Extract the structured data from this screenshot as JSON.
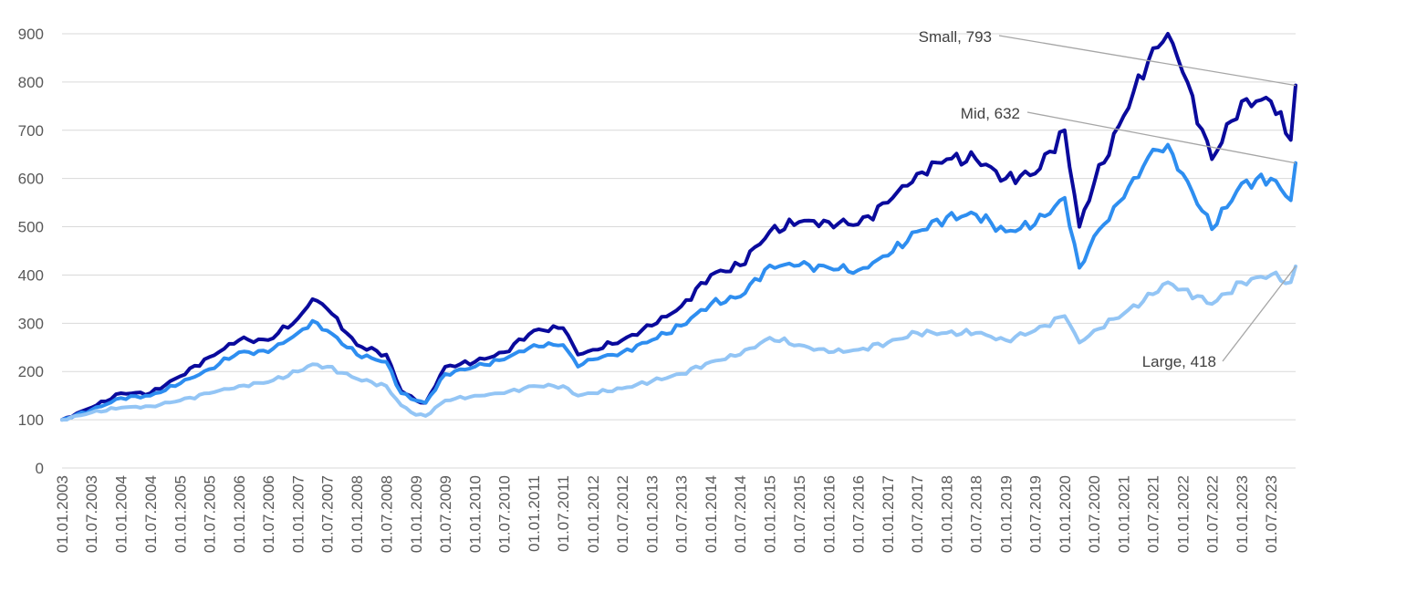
{
  "chart_data": {
    "type": "line",
    "title": "",
    "xlabel": "",
    "ylabel": "",
    "ylim": [
      0,
      900
    ],
    "yticks": [
      0,
      100,
      200,
      300,
      400,
      500,
      600,
      700,
      800,
      900
    ],
    "grid": true,
    "legend": "none",
    "x_labels": [
      "01.01.2003",
      "01.07.2003",
      "01.01.2004",
      "01.07.2004",
      "01.01.2005",
      "01.07.2005",
      "01.01.2006",
      "01.07.2006",
      "01.01.2007",
      "01.07.2007",
      "01.01.2008",
      "01.07.2008",
      "01.01.2009",
      "01.07.2009",
      "01.01.2010",
      "01.07.2010",
      "01.01.2011",
      "01.07.2011",
      "01.01.2012",
      "01.07.2012",
      "01.01.2013",
      "01.07.2013",
      "01.01.2014",
      "01.07.2014",
      "01.01.2015",
      "01.07.2015",
      "01.01.2016",
      "01.07.2016",
      "01.01.2017",
      "01.07.2017",
      "01.01.2018",
      "01.07.2018",
      "01.01.2019",
      "01.07.2019",
      "01.01.2020",
      "01.07.2020",
      "01.01.2021",
      "01.07.2021",
      "01.01.2022",
      "01.07.2022",
      "01.01.2023",
      "01.07.2023"
    ],
    "x_end": "01.12.2023",
    "series": [
      {
        "name": "Small",
        "color": "#0a0a9c",
        "label": "Small, 793",
        "points": [
          [
            "01.01.2003",
            100
          ],
          [
            "01.07.2003",
            125
          ],
          [
            "01.01.2004",
            155
          ],
          [
            "01.07.2004",
            155
          ],
          [
            "01.01.2005",
            190
          ],
          [
            "01.07.2005",
            230
          ],
          [
            "01.01.2006",
            265
          ],
          [
            "01.07.2006",
            265
          ],
          [
            "01.01.2007",
            310
          ],
          [
            "01.04.2007",
            350
          ],
          [
            "01.07.2007",
            330
          ],
          [
            "01.01.2008",
            255
          ],
          [
            "01.07.2008",
            235
          ],
          [
            "01.10.2008",
            160
          ],
          [
            "01.01.2009",
            140
          ],
          [
            "01.03.2009",
            135
          ],
          [
            "01.07.2009",
            210
          ],
          [
            "01.01.2010",
            220
          ],
          [
            "01.07.2010",
            240
          ],
          [
            "01.01.2011",
            285
          ],
          [
            "01.07.2011",
            290
          ],
          [
            "01.10.2011",
            235
          ],
          [
            "01.01.2012",
            245
          ],
          [
            "01.07.2012",
            265
          ],
          [
            "01.01.2013",
            295
          ],
          [
            "01.07.2013",
            335
          ],
          [
            "01.01.2014",
            400
          ],
          [
            "01.07.2014",
            420
          ],
          [
            "01.01.2015",
            490
          ],
          [
            "01.07.2015",
            510
          ],
          [
            "01.01.2016",
            510
          ],
          [
            "01.07.2016",
            505
          ],
          [
            "01.01.2017",
            550
          ],
          [
            "01.07.2017",
            610
          ],
          [
            "01.01.2018",
            640
          ],
          [
            "01.07.2018",
            640
          ],
          [
            "01.01.2019",
            600
          ],
          [
            "01.07.2019",
            610
          ],
          [
            "01.01.2020",
            700
          ],
          [
            "01.04.2020",
            500
          ],
          [
            "01.07.2020",
            590
          ],
          [
            "01.01.2021",
            730
          ],
          [
            "01.07.2021",
            870
          ],
          [
            "01.10.2021",
            900
          ],
          [
            "01.01.2022",
            820
          ],
          [
            "01.07.2022",
            640
          ],
          [
            "01.01.2023",
            760
          ],
          [
            "01.07.2023",
            760
          ],
          [
            "01.11.2023",
            680
          ],
          [
            "01.12.2023",
            793
          ]
        ]
      },
      {
        "name": "Mid",
        "color": "#2e8ef0",
        "label": "Mid, 632",
        "points": [
          [
            "01.01.2003",
            100
          ],
          [
            "01.07.2003",
            120
          ],
          [
            "01.01.2004",
            145
          ],
          [
            "01.07.2004",
            150
          ],
          [
            "01.01.2005",
            175
          ],
          [
            "01.07.2005",
            205
          ],
          [
            "01.01.2006",
            240
          ],
          [
            "01.07.2006",
            240
          ],
          [
            "01.01.2007",
            280
          ],
          [
            "01.04.2007",
            305
          ],
          [
            "01.07.2007",
            285
          ],
          [
            "01.01.2008",
            235
          ],
          [
            "01.07.2008",
            220
          ],
          [
            "01.10.2008",
            155
          ],
          [
            "01.01.2009",
            140
          ],
          [
            "01.03.2009",
            135
          ],
          [
            "01.07.2009",
            195
          ],
          [
            "01.01.2010",
            210
          ],
          [
            "01.07.2010",
            225
          ],
          [
            "01.01.2011",
            255
          ],
          [
            "01.07.2011",
            255
          ],
          [
            "01.10.2011",
            210
          ],
          [
            "01.01.2012",
            225
          ],
          [
            "01.07.2012",
            240
          ],
          [
            "01.01.2013",
            265
          ],
          [
            "01.07.2013",
            295
          ],
          [
            "01.01.2014",
            340
          ],
          [
            "01.07.2014",
            355
          ],
          [
            "01.01.2015",
            420
          ],
          [
            "01.07.2015",
            420
          ],
          [
            "01.01.2016",
            415
          ],
          [
            "01.07.2016",
            410
          ],
          [
            "01.01.2017",
            440
          ],
          [
            "01.07.2017",
            490
          ],
          [
            "01.01.2018",
            520
          ],
          [
            "01.07.2018",
            525
          ],
          [
            "01.01.2019",
            490
          ],
          [
            "01.07.2019",
            505
          ],
          [
            "01.01.2020",
            560
          ],
          [
            "01.04.2020",
            415
          ],
          [
            "01.07.2020",
            480
          ],
          [
            "01.01.2021",
            560
          ],
          [
            "01.07.2021",
            660
          ],
          [
            "01.10.2021",
            670
          ],
          [
            "01.01.2022",
            610
          ],
          [
            "01.07.2022",
            495
          ],
          [
            "01.01.2023",
            590
          ],
          [
            "01.07.2023",
            600
          ],
          [
            "01.11.2023",
            555
          ],
          [
            "01.12.2023",
            632
          ]
        ]
      },
      {
        "name": "Large",
        "color": "#93c5f5",
        "label": "Large, 418",
        "points": [
          [
            "01.01.2003",
            100
          ],
          [
            "01.07.2003",
            115
          ],
          [
            "01.01.2004",
            125
          ],
          [
            "01.07.2004",
            128
          ],
          [
            "01.01.2005",
            140
          ],
          [
            "01.07.2005",
            155
          ],
          [
            "01.01.2006",
            170
          ],
          [
            "01.07.2006",
            178
          ],
          [
            "01.01.2007",
            200
          ],
          [
            "01.04.2007",
            215
          ],
          [
            "01.07.2007",
            210
          ],
          [
            "01.01.2008",
            185
          ],
          [
            "01.07.2008",
            170
          ],
          [
            "01.10.2008",
            130
          ],
          [
            "01.01.2009",
            110
          ],
          [
            "01.03.2009",
            108
          ],
          [
            "01.07.2009",
            140
          ],
          [
            "01.01.2010",
            150
          ],
          [
            "01.07.2010",
            155
          ],
          [
            "01.01.2011",
            170
          ],
          [
            "01.07.2011",
            170
          ],
          [
            "01.10.2011",
            150
          ],
          [
            "01.01.2012",
            155
          ],
          [
            "01.07.2012",
            165
          ],
          [
            "01.01.2013",
            180
          ],
          [
            "01.07.2013",
            195
          ],
          [
            "01.01.2014",
            220
          ],
          [
            "01.07.2014",
            235
          ],
          [
            "01.01.2015",
            270
          ],
          [
            "01.07.2015",
            255
          ],
          [
            "01.01.2016",
            240
          ],
          [
            "01.07.2016",
            245
          ],
          [
            "01.01.2017",
            260
          ],
          [
            "01.07.2017",
            280
          ],
          [
            "01.01.2018",
            280
          ],
          [
            "01.07.2018",
            280
          ],
          [
            "01.01.2019",
            265
          ],
          [
            "01.07.2019",
            285
          ],
          [
            "01.01.2020",
            315
          ],
          [
            "01.04.2020",
            260
          ],
          [
            "01.07.2020",
            285
          ],
          [
            "01.01.2021",
            320
          ],
          [
            "01.07.2021",
            360
          ],
          [
            "01.10.2021",
            385
          ],
          [
            "01.01.2022",
            370
          ],
          [
            "01.07.2022",
            340
          ],
          [
            "01.01.2023",
            385
          ],
          [
            "01.07.2023",
            400
          ],
          [
            "01.11.2023",
            385
          ],
          [
            "01.12.2023",
            418
          ]
        ]
      }
    ]
  }
}
